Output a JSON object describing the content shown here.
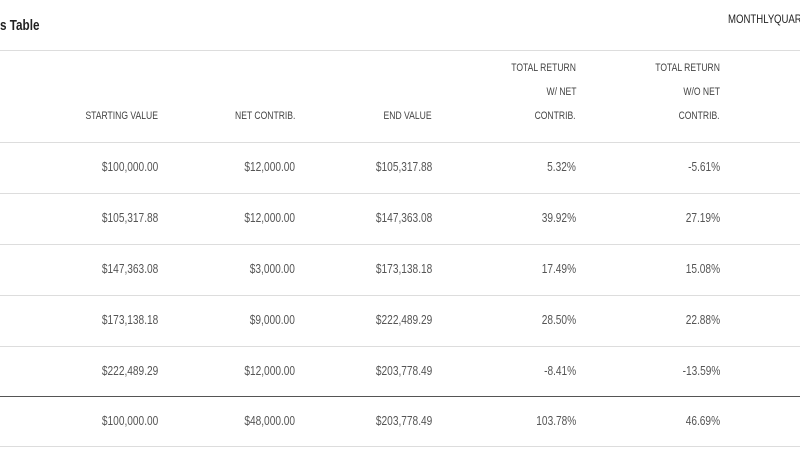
{
  "header": {
    "title": "s Table",
    "tabs": [
      "MONTHLY",
      "QUART"
    ]
  },
  "table": {
    "columns": [
      [
        "STARTING VALUE"
      ],
      [
        "NET CONTRIB."
      ],
      [
        "END VALUE"
      ],
      [
        "TOTAL RETURN",
        "W/ NET",
        "CONTRIB."
      ],
      [
        "TOTAL RETURN",
        "W/O NET",
        "CONTRIB."
      ]
    ],
    "rows": [
      [
        "$100,000.00",
        "$12,000.00",
        "$105,317.88",
        "5.32%",
        "-5.61%"
      ],
      [
        "$105,317.88",
        "$12,000.00",
        "$147,363.08",
        "39.92%",
        "27.19%"
      ],
      [
        "$147,363.08",
        "$3,000.00",
        "$173,138.18",
        "17.49%",
        "15.08%"
      ],
      [
        "$173,138.18",
        "$9,000.00",
        "$222,489.29",
        "28.50%",
        "22.88%"
      ],
      [
        "$222,489.29",
        "$12,000.00",
        "$203,778.49",
        "-8.41%",
        "-13.59%"
      ]
    ],
    "total": [
      "$100,000.00",
      "$48,000.00",
      "$203,778.49",
      "103.78%",
      "46.69%"
    ]
  }
}
